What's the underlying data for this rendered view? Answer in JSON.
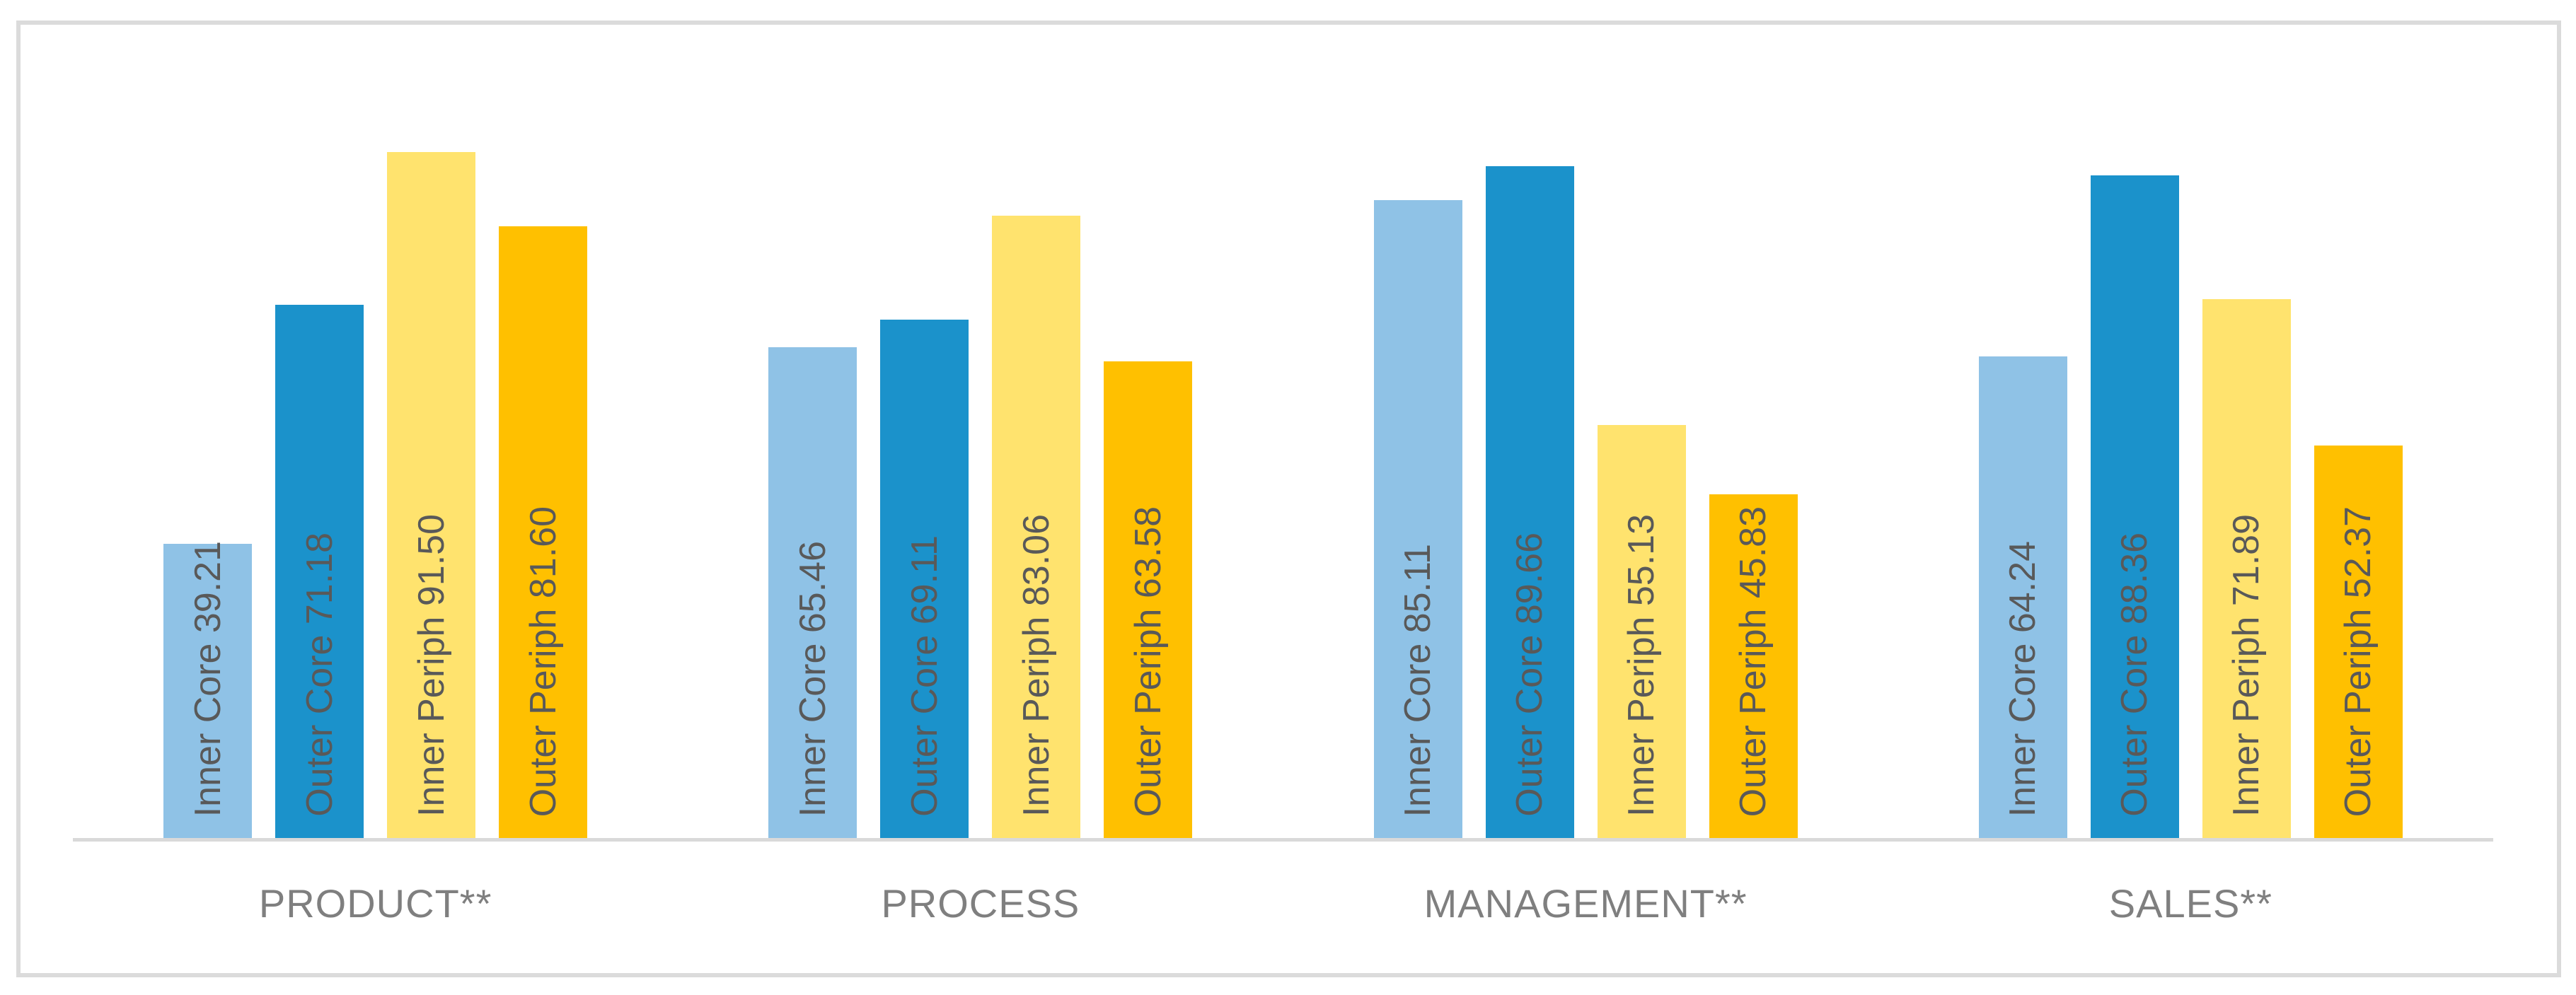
{
  "chart_data": {
    "type": "bar",
    "title": "",
    "xlabel": "",
    "ylabel": "",
    "categories": [
      "PRODUCT**",
      "PROCESS",
      "MANAGEMENT**",
      "SALES**"
    ],
    "series": [
      {
        "name": "Inner Core",
        "color": "#8FC2E6",
        "values": [
          39.21,
          65.46,
          85.11,
          64.24
        ]
      },
      {
        "name": "Outer Core",
        "color": "#1B92CB",
        "values": [
          71.18,
          69.11,
          89.66,
          88.36
        ]
      },
      {
        "name": "Inner Periph",
        "color": "#FFE36E",
        "values": [
          91.5,
          83.06,
          55.13,
          71.89
        ]
      },
      {
        "name": "Outer Periph",
        "color": "#FFC000",
        "values": [
          81.6,
          63.58,
          45.83,
          52.37
        ]
      }
    ],
    "bar_labels": [
      [
        "Inner Core 39.21",
        "Outer Core 71.18",
        "Inner Periph 91.50",
        "Outer Periph 81.60"
      ],
      [
        "Inner Core 65.46",
        "Outer Core 69.11",
        "Inner Periph 83.06",
        "Outer Periph 63.58"
      ],
      [
        "Inner Core 85.11",
        "Outer Core 89.66",
        "Inner Periph 55.13",
        "Outer Periph 45.83"
      ],
      [
        "Inner Core 64.24",
        "Outer Core 88.36",
        "Inner Periph 71.89",
        "Outer Periph 52.37"
      ]
    ],
    "ylim": [
      0,
      100
    ],
    "grid": false,
    "legend": "none",
    "data_label_rotation_degrees": 90,
    "data_label_position": "inside-base",
    "colors": {
      "data_label_text": "#595959",
      "category_label_text": "#7F7F7F",
      "axis_line": "#D9D9D9",
      "chart_border": "#DBDBDB",
      "background": "#FFFFFF"
    }
  }
}
